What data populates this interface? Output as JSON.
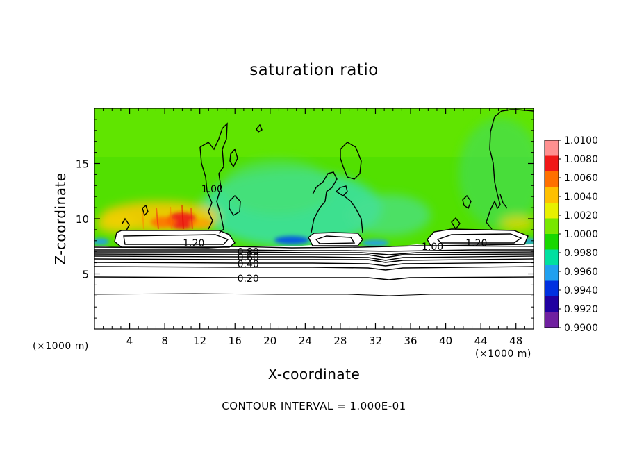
{
  "chart_data": {
    "type": "heatmap",
    "title": "saturation ratio",
    "xlabel": "X-coordinate",
    "ylabel": "Z-coordinate",
    "x_unit": "(×1000 m)",
    "y_unit": "(×1000 m)",
    "xlim": [
      0,
      50
    ],
    "ylim": [
      0,
      20
    ],
    "x_ticks": [
      4,
      8,
      12,
      16,
      20,
      24,
      28,
      32,
      36,
      40,
      44,
      48
    ],
    "y_ticks": [
      5,
      10,
      15
    ],
    "colorbar": {
      "min": 0.99,
      "max": 1.01,
      "labels": [
        "1.0100",
        "1.0080",
        "1.0060",
        "1.0040",
        "1.0020",
        "1.0000",
        "0.9980",
        "0.9960",
        "0.9940",
        "0.9920",
        "0.9900"
      ],
      "colors": [
        "#ff9090",
        "#f01818",
        "#ff7000",
        "#ffc000",
        "#e8f000",
        "#78e800",
        "#18d800",
        "#00e0a0",
        "#20a0f0",
        "#0030e0",
        "#2000a0",
        "#7020a0"
      ]
    },
    "contour_labels": [
      {
        "text": "1.20",
        "x": 11.3,
        "y": 7.8
      },
      {
        "text": "0.80",
        "x": 17.5,
        "y": 7.0
      },
      {
        "text": "0.60",
        "x": 17.5,
        "y": 6.5
      },
      {
        "text": "0.40",
        "x": 17.5,
        "y": 5.9
      },
      {
        "text": "0.20",
        "x": 17.5,
        "y": 4.6
      },
      {
        "text": "1.00",
        "x": 38.5,
        "y": 7.5
      },
      {
        "text": "1.20",
        "x": 43.5,
        "y": 7.8
      },
      {
        "text": "1.00",
        "x": 13.4,
        "y": 12.7
      }
    ],
    "contour_interval": "1.000E-01"
  },
  "footer_text": "CONTOUR INTERVAL = 1.000E-01"
}
